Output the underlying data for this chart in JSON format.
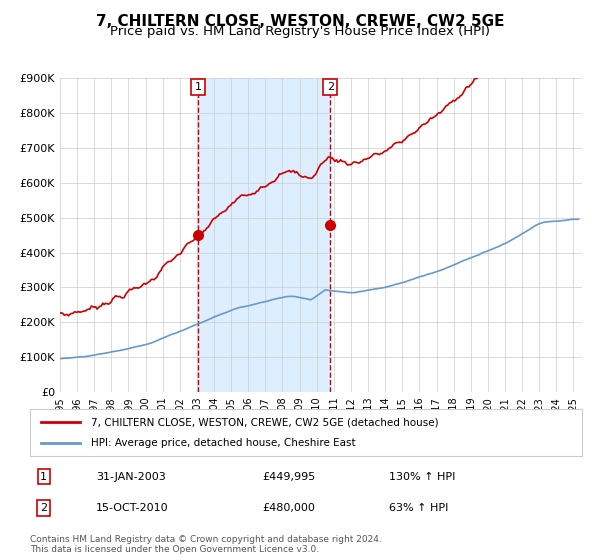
{
  "title": "7, CHILTERN CLOSE, WESTON, CREWE, CW2 5GE",
  "subtitle": "Price paid vs. HM Land Registry's House Price Index (HPI)",
  "xlabel": "",
  "ylabel": "",
  "ylim": [
    0,
    900000
  ],
  "xlim_start": 1995.0,
  "xlim_end": 2025.5,
  "yticks": [
    0,
    100000,
    200000,
    300000,
    400000,
    500000,
    600000,
    700000,
    800000,
    900000
  ],
  "ytick_labels": [
    "£0",
    "£100K",
    "£200K",
    "£300K",
    "£400K",
    "£500K",
    "£600K",
    "£700K",
    "£800K",
    "£900K"
  ],
  "xticks": [
    1995,
    1996,
    1997,
    1998,
    1999,
    2000,
    2001,
    2002,
    2003,
    2004,
    2005,
    2006,
    2007,
    2008,
    2009,
    2010,
    2011,
    2012,
    2013,
    2014,
    2015,
    2016,
    2017,
    2018,
    2019,
    2020,
    2021,
    2022,
    2023,
    2024,
    2025
  ],
  "sale1_x": 2003.08,
  "sale1_y": 449995,
  "sale2_x": 2010.79,
  "sale2_y": 480000,
  "vline1_x": 2003.08,
  "vline2_x": 2010.79,
  "shade_start": 2003.08,
  "shade_end": 2010.79,
  "sale_color": "#cc0000",
  "hpi_color": "#6699cc",
  "shade_color": "#ddeeff",
  "marker_color": "#cc0000",
  "bg_color": "#ffffff",
  "grid_color": "#cccccc",
  "legend1_label": "7, CHILTERN CLOSE, WESTON, CREWE, CW2 5GE (detached house)",
  "legend2_label": "HPI: Average price, detached house, Cheshire East",
  "annotation1_label": "1",
  "annotation2_label": "2",
  "table_row1": [
    "1",
    "31-JAN-2003",
    "£449,995",
    "130% ↑ HPI"
  ],
  "table_row2": [
    "2",
    "15-OCT-2010",
    "£480,000",
    "63% ↑ HPI"
  ],
  "footnote": "Contains HM Land Registry data © Crown copyright and database right 2024.\nThis data is licensed under the Open Government Licence v3.0.",
  "title_fontsize": 11,
  "subtitle_fontsize": 9.5
}
